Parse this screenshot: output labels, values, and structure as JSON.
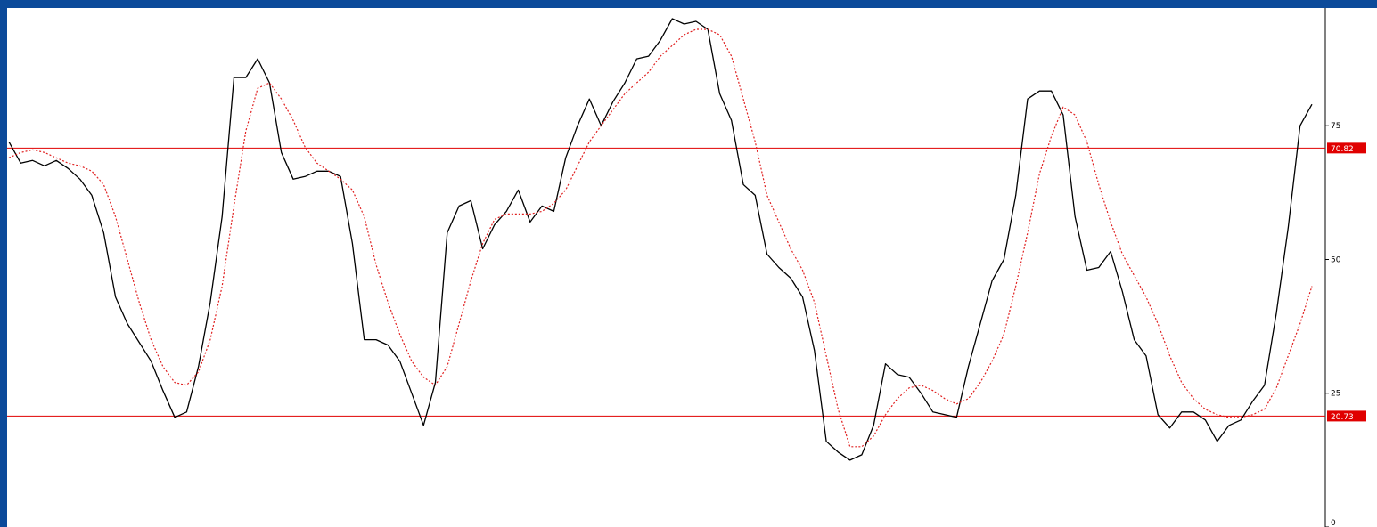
{
  "chart_data": {
    "type": "line",
    "title": "",
    "xlabel": "",
    "ylabel": "",
    "ylim": [
      0,
      97
    ],
    "y_ticks": [
      "75",
      "50",
      "25",
      "0"
    ],
    "y_tick_values": [
      75,
      50,
      25,
      0
    ],
    "grid": false,
    "colors": {
      "main_line": "#000000",
      "signal_line": "#e02020",
      "level_line": "#e00000",
      "level_label_bg": "#e00000",
      "frame": "#0b4a9a"
    },
    "levels": [
      {
        "value": 70.82,
        "label": "70.82"
      },
      {
        "value": 20.73,
        "label": "20.73"
      }
    ],
    "series": [
      {
        "style": "solid",
        "values": [
          72,
          68,
          68.5,
          67.5,
          68.5,
          67,
          65,
          62,
          55,
          43,
          38,
          34.5,
          31,
          25.5,
          20.5,
          21.5,
          30,
          42,
          58,
          84,
          84,
          87.5,
          83,
          70,
          65,
          65.5,
          66.5,
          66.5,
          65.5,
          53,
          35,
          35,
          34,
          31,
          25,
          19,
          27,
          55,
          60,
          61,
          52,
          56.5,
          59,
          63,
          57,
          60,
          59,
          69,
          75,
          80,
          75,
          79.5,
          83,
          87.5,
          88,
          91,
          95,
          94,
          94.5,
          93,
          81,
          76,
          64,
          62,
          51,
          48.5,
          46.5,
          43,
          33,
          16,
          14,
          12.5,
          13.5,
          19,
          30.5,
          28.5,
          28,
          25,
          21.5,
          21,
          20.5,
          30,
          38,
          46,
          50,
          62,
          80,
          81.5,
          81.5,
          77,
          58,
          48,
          48.5,
          51.5,
          44,
          35,
          32,
          21,
          18.5,
          21.5,
          21.5,
          20,
          16,
          19,
          20,
          23.5,
          26.5,
          40,
          56,
          75,
          79
        ]
      },
      {
        "style": "dashed",
        "values": [
          69,
          70,
          70.5,
          70,
          69,
          68,
          67.5,
          66.5,
          64,
          58,
          50,
          42,
          35,
          30,
          27,
          26.5,
          29,
          35,
          45,
          60,
          74,
          82,
          83,
          80,
          76,
          71,
          68,
          66.5,
          65,
          63,
          58,
          49,
          42,
          36,
          31,
          28,
          26.5,
          30,
          38,
          46,
          53,
          57.5,
          58.5,
          58.5,
          58.5,
          59,
          60.5,
          63,
          67.5,
          72,
          75,
          78,
          81,
          83,
          85,
          88,
          90,
          92,
          93,
          93,
          92,
          88,
          80,
          72,
          62,
          57,
          52,
          48,
          42,
          32,
          22,
          15,
          15,
          17,
          21,
          24,
          26,
          26.5,
          25.5,
          24,
          23,
          24,
          27,
          31,
          36,
          45,
          55,
          66,
          73,
          78.5,
          77,
          72,
          64,
          57,
          51,
          47,
          43,
          38,
          32,
          27,
          24,
          22,
          21,
          20.5,
          20.5,
          21,
          22,
          26,
          32,
          38,
          45
        ]
      }
    ]
  }
}
